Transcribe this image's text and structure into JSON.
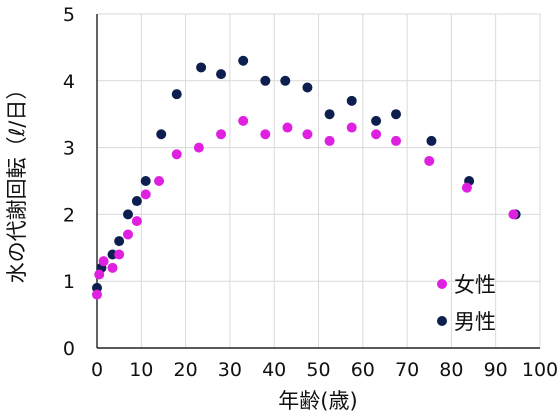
{
  "chart_data": {
    "type": "scatter",
    "xlabel": "年齢(歳)",
    "ylabel": "水の代謝回転（ℓ/日）",
    "xlim": [
      0,
      100
    ],
    "ylim": [
      0,
      5
    ],
    "xticks": [
      0,
      10,
      20,
      30,
      40,
      50,
      60,
      70,
      80,
      90,
      100
    ],
    "yticks": [
      0,
      1,
      2,
      3,
      4,
      5
    ],
    "grid": true,
    "legend_position": "bottom-right",
    "series": [
      {
        "name": "女性",
        "color": "#e020e0",
        "points": [
          [
            0,
            0.8
          ],
          [
            0.5,
            1.1
          ],
          [
            1.5,
            1.3
          ],
          [
            3.5,
            1.2
          ],
          [
            5,
            1.4
          ],
          [
            7,
            1.7
          ],
          [
            9,
            1.9
          ],
          [
            11,
            2.3
          ],
          [
            14,
            2.5
          ],
          [
            18,
            2.9
          ],
          [
            23,
            3.0
          ],
          [
            28,
            3.2
          ],
          [
            33,
            3.4
          ],
          [
            38,
            3.2
          ],
          [
            43,
            3.3
          ],
          [
            47.5,
            3.2
          ],
          [
            52.5,
            3.1
          ],
          [
            57.5,
            3.3
          ],
          [
            63,
            3.2
          ],
          [
            67.5,
            3.1
          ],
          [
            75,
            2.8
          ],
          [
            83.5,
            2.4
          ],
          [
            94,
            2.0
          ]
        ]
      },
      {
        "name": "男性",
        "color": "#0d1f4f",
        "points": [
          [
            0,
            0.9
          ],
          [
            1,
            1.2
          ],
          [
            3.5,
            1.4
          ],
          [
            5,
            1.6
          ],
          [
            7,
            2.0
          ],
          [
            9,
            2.2
          ],
          [
            11,
            2.5
          ],
          [
            14.5,
            3.2
          ],
          [
            18,
            3.8
          ],
          [
            23.5,
            4.2
          ],
          [
            28,
            4.1
          ],
          [
            33,
            4.3
          ],
          [
            38,
            4.0
          ],
          [
            42.5,
            4.0
          ],
          [
            47.5,
            3.9
          ],
          [
            52.5,
            3.5
          ],
          [
            57.5,
            3.7
          ],
          [
            63,
            3.4
          ],
          [
            67.5,
            3.5
          ],
          [
            75.5,
            3.1
          ],
          [
            84,
            2.5
          ],
          [
            94.5,
            2.0
          ]
        ]
      }
    ]
  }
}
